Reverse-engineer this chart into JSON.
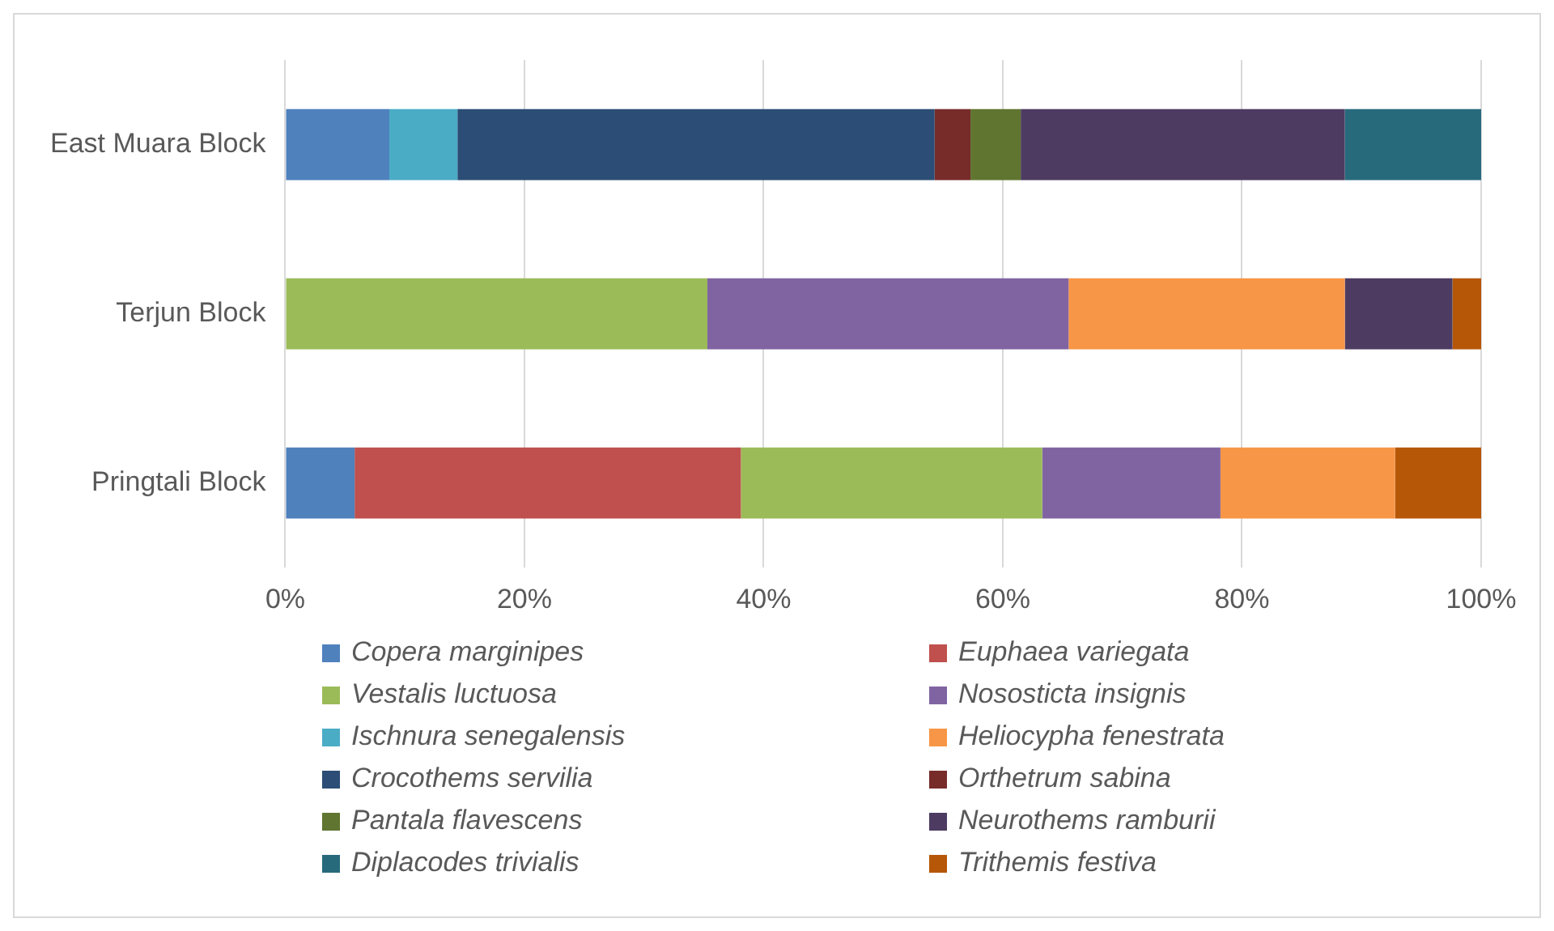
{
  "chart_data": {
    "type": "bar",
    "orientation": "horizontal",
    "stacked": true,
    "categories": [
      "East Muara Block",
      "Terjun Block",
      "Pringtali Block"
    ],
    "series": [
      {
        "name": "Copera marginipes",
        "color": "#4f81bd",
        "values": [
          8.7,
          null,
          5.8
        ]
      },
      {
        "name": "Euphaea variegata",
        "color": "#c0504d",
        "values": [
          null,
          null,
          32.3
        ]
      },
      {
        "name": "Vestalis luctuosa",
        "color": "#9bbb59",
        "values": [
          null,
          35.3,
          25.2
        ]
      },
      {
        "name": "Nososticta insignis",
        "color": "#8064a2",
        "values": [
          null,
          30.2,
          14.9
        ]
      },
      {
        "name": "Ischnura senegalensis",
        "color": "#4bacc6",
        "values": [
          5.7,
          null,
          null
        ]
      },
      {
        "name": "Heliocypha fenestrata",
        "color": "#f79646",
        "values": [
          null,
          23.1,
          14.6
        ]
      },
      {
        "name": "Crocothems servilia",
        "color": "#2c4d75",
        "values": [
          39.9,
          null,
          null
        ]
      },
      {
        "name": "Orthetrum sabina",
        "color": "#772c2a",
        "values": [
          3.0,
          null,
          null
        ]
      },
      {
        "name": "Pantala flavescens",
        "color": "#5f7530",
        "values": [
          4.2,
          null,
          null
        ]
      },
      {
        "name": "Neurothems ramburii",
        "color": "#4d3b62",
        "values": [
          27.1,
          9.0,
          null
        ]
      },
      {
        "name": "Diplacodes trivialis",
        "color": "#276a7c",
        "values": [
          11.4,
          null,
          null
        ]
      },
      {
        "name": "Trithemis festiva",
        "color": "#b65708",
        "values": [
          null,
          2.4,
          7.2
        ]
      }
    ],
    "xlim": [
      0,
      100
    ],
    "xticks": [
      {
        "value": 0,
        "label": "0%"
      },
      {
        "value": 20,
        "label": "20%"
      },
      {
        "value": 40,
        "label": "40%"
      },
      {
        "value": 60,
        "label": "60%"
      },
      {
        "value": 80,
        "label": "80%"
      },
      {
        "value": 100,
        "label": "100%"
      }
    ],
    "grid": "x",
    "legend": "bottom"
  }
}
